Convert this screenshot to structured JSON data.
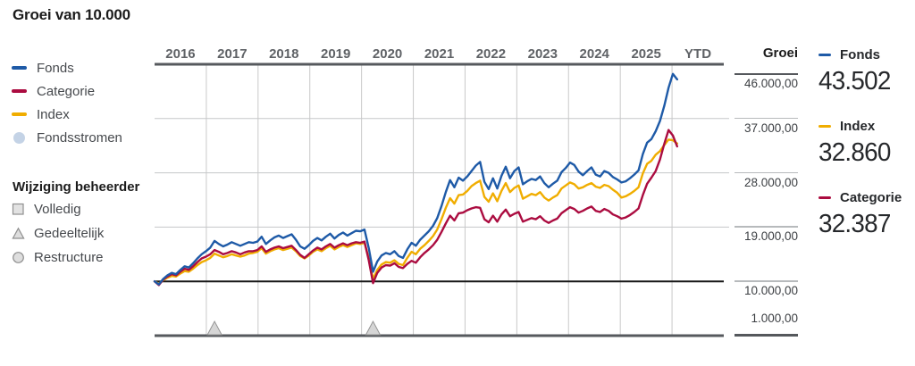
{
  "title": "Groei van 10.000",
  "colors": {
    "fonds": "#1e5aa7",
    "categorie": "#ab0c40",
    "index": "#f0ad00",
    "fondsstromen": "#c4d3e6",
    "gridline": "#c9c9c9",
    "axis_dark": "#56595d",
    "baseline_black": "#161616",
    "marker_fill": "#d6d6d6",
    "marker_stroke": "#949494"
  },
  "legend": {
    "items": [
      {
        "label": "Fonds",
        "color": "#1e5aa7",
        "type": "line"
      },
      {
        "label": "Categorie",
        "color": "#ab0c40",
        "type": "line"
      },
      {
        "label": "Index",
        "color": "#f0ad00",
        "type": "line"
      },
      {
        "label": "Fondsstromen",
        "color": "#c4d3e6",
        "type": "circle"
      }
    ]
  },
  "manager_change": {
    "heading": "Wijziging beheerder",
    "items": [
      {
        "label": "Volledig",
        "shape": "square"
      },
      {
        "label": "Gedeeltelijk",
        "shape": "triangle"
      },
      {
        "label": "Restructure",
        "shape": "circle"
      }
    ]
  },
  "axis": {
    "header": "Groei",
    "labels": [
      "46.000,00",
      "37.000,00",
      "28.000,00",
      "19.000,00",
      "10.000,00",
      "1.000,00"
    ],
    "values": [
      46000,
      37000,
      28000,
      19000,
      10000,
      1000
    ]
  },
  "summary": [
    {
      "label": "Fonds",
      "value": "43.502",
      "color": "#1e5aa7"
    },
    {
      "label": "Index",
      "value": "32.860",
      "color": "#f0ad00"
    },
    {
      "label": "Categorie",
      "value": "32.387",
      "color": "#ab0c40"
    }
  ],
  "chart_data": {
    "type": "line",
    "title": "Groei van 10.000",
    "start_value": 10000,
    "frequency": "monthly",
    "start": "2016-01",
    "x_axis": {
      "labels": [
        "2016",
        "2017",
        "2018",
        "2019",
        "2020",
        "2021",
        "2022",
        "2023",
        "2024",
        "2025",
        "YTD"
      ]
    },
    "ylim": [
      1000,
      46000
    ],
    "yticks": [
      1000,
      10000,
      19000,
      28000,
      37000,
      46000
    ],
    "grid": true,
    "x_span_fraction": 0.918,
    "final_values": {
      "Fonds": 43502,
      "Index": 32860,
      "Categorie": 32387
    },
    "manager_change_markers": [
      {
        "type": "Gedeeltelijk",
        "shape": "triangle",
        "month_index": 14
      },
      {
        "type": "Gedeeltelijk",
        "shape": "triangle",
        "month_index": 51
      }
    ],
    "series": [
      {
        "name": "Fonds",
        "color": "#1e5aa7",
        "values": [
          10000,
          9500,
          10400,
          11000,
          11400,
          11200,
          11900,
          12500,
          12300,
          13000,
          13800,
          14500,
          15000,
          15600,
          16700,
          16200,
          15800,
          16100,
          16500,
          16200,
          15900,
          16200,
          16500,
          16400,
          16600,
          17400,
          16200,
          16800,
          17300,
          17600,
          17200,
          17500,
          17800,
          16900,
          15800,
          15400,
          16000,
          16700,
          17200,
          16800,
          17400,
          17900,
          17100,
          17700,
          18100,
          17600,
          18000,
          18400,
          18300,
          18600,
          15500,
          11600,
          13300,
          14300,
          14700,
          14500,
          15000,
          14200,
          13900,
          15300,
          16400,
          15900,
          16900,
          17600,
          18300,
          19200,
          20500,
          22500,
          24800,
          26800,
          25600,
          27200,
          26700,
          27400,
          28300,
          29200,
          29800,
          26500,
          25300,
          27100,
          25400,
          27500,
          29000,
          27100,
          28300,
          28900,
          26100,
          26600,
          27000,
          26800,
          27400,
          26300,
          25600,
          26200,
          26700,
          28100,
          28800,
          29700,
          29300,
          28200,
          27600,
          28300,
          28900,
          27700,
          27400,
          28300,
          28000,
          27300,
          26900,
          26400,
          26600,
          27100,
          27700,
          28400,
          31100,
          33000,
          33600,
          34900,
          36600,
          39100,
          42100,
          44400,
          43502
        ]
      },
      {
        "name": "Categorie",
        "color": "#ab0c40",
        "values": [
          10000,
          9400,
          10300,
          10800,
          11200,
          11000,
          11600,
          12100,
          11900,
          12500,
          13200,
          13800,
          14100,
          14500,
          15200,
          14900,
          14500,
          14700,
          15000,
          14800,
          14500,
          14800,
          15000,
          15000,
          15200,
          15800,
          14900,
          15300,
          15600,
          15800,
          15500,
          15700,
          15900,
          15200,
          14400,
          13900,
          14500,
          15100,
          15600,
          15300,
          15800,
          16200,
          15600,
          16000,
          16300,
          16000,
          16300,
          16500,
          16400,
          16600,
          13500,
          9700,
          11400,
          12300,
          12700,
          12600,
          13000,
          12400,
          12200,
          12900,
          13400,
          13100,
          14000,
          14700,
          15300,
          16000,
          16900,
          18200,
          19600,
          20900,
          20100,
          21300,
          21400,
          21800,
          22100,
          22300,
          22200,
          20300,
          19800,
          20900,
          19900,
          21100,
          21900,
          20800,
          21200,
          21500,
          19900,
          20200,
          20500,
          20300,
          20800,
          20100,
          19700,
          20100,
          20400,
          21300,
          21800,
          22300,
          22000,
          21400,
          21700,
          22100,
          22400,
          21700,
          21500,
          22000,
          21700,
          21100,
          20800,
          20400,
          20600,
          21000,
          21500,
          22100,
          24300,
          26200,
          27200,
          28300,
          30200,
          32800,
          35100,
          34200,
          32387
        ]
      },
      {
        "name": "Index",
        "color": "#f0ad00",
        "values": [
          10000,
          9600,
          10200,
          10600,
          10900,
          10800,
          11300,
          11700,
          11600,
          12100,
          12700,
          13200,
          13500,
          13900,
          14600,
          14300,
          14000,
          14200,
          14500,
          14300,
          14100,
          14300,
          14600,
          14700,
          14900,
          15500,
          14600,
          15000,
          15300,
          15500,
          15200,
          15400,
          15600,
          15000,
          14200,
          13800,
          14300,
          14900,
          15300,
          15000,
          15500,
          15900,
          15300,
          15700,
          16000,
          15700,
          16000,
          16300,
          16200,
          16400,
          13800,
          10400,
          11900,
          12800,
          13200,
          13100,
          13500,
          12900,
          12700,
          13900,
          14900,
          14500,
          15400,
          16000,
          16700,
          17500,
          18600,
          20300,
          22200,
          23800,
          22900,
          24300,
          24400,
          25000,
          25800,
          26300,
          26700,
          24000,
          23200,
          24600,
          23300,
          25000,
          26300,
          24800,
          25500,
          25900,
          23700,
          24100,
          24500,
          24300,
          24800,
          23900,
          23400,
          23900,
          24300,
          25400,
          25900,
          26400,
          26100,
          25400,
          25600,
          26000,
          26300,
          25700,
          25500,
          26000,
          25800,
          25200,
          24700,
          23900,
          24100,
          24500,
          25000,
          25600,
          27900,
          29500,
          30000,
          31000,
          31600,
          32600,
          33500,
          33400,
          32860
        ]
      }
    ]
  }
}
